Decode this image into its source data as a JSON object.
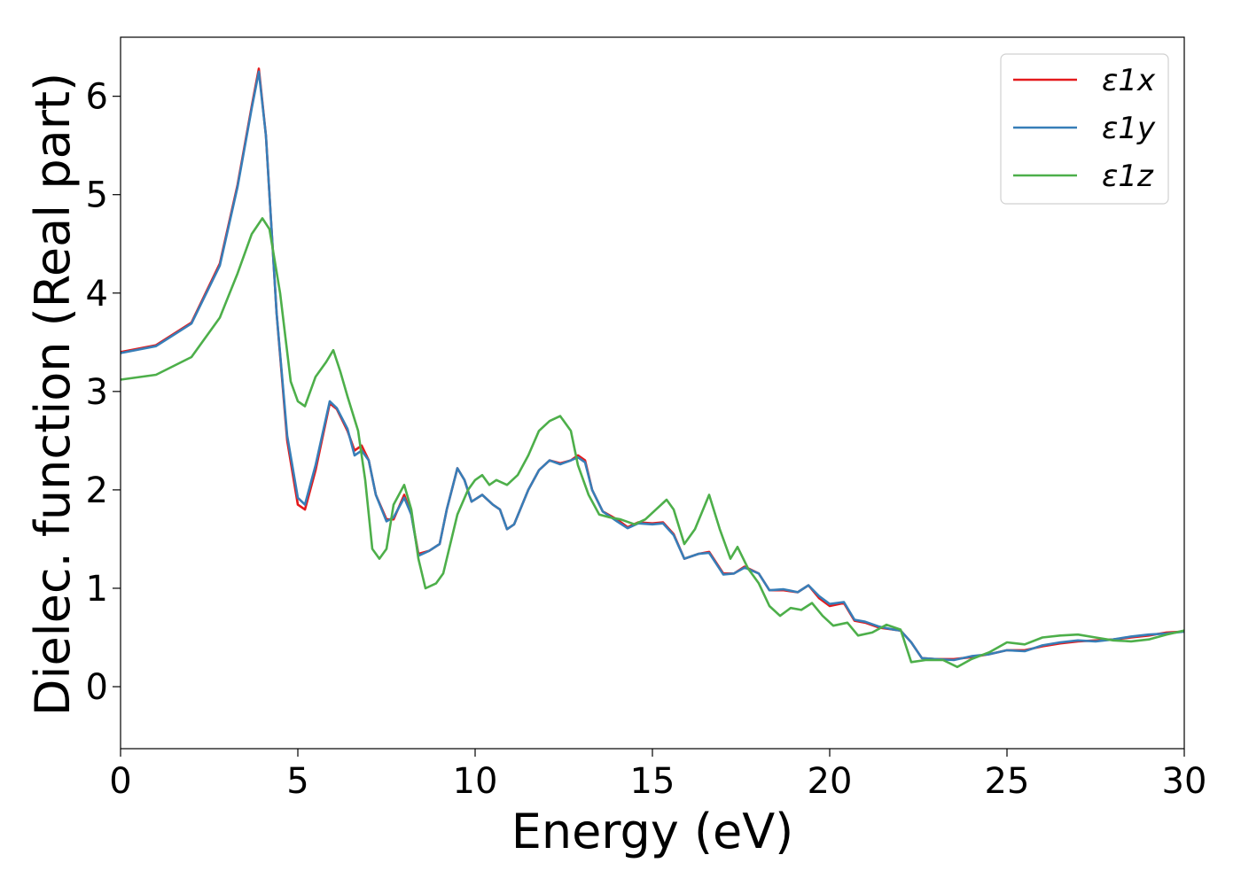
{
  "chart_data": {
    "type": "line",
    "xlabel": "Energy (eV)",
    "ylabel": "Dielec. function (Real part)",
    "xlim": [
      0,
      30
    ],
    "ylim": [
      -0.63,
      6.6
    ],
    "xticks": [
      0,
      5,
      10,
      15,
      20,
      25,
      30
    ],
    "yticks": [
      0,
      1,
      2,
      3,
      4,
      5,
      6
    ],
    "grid": false,
    "legend_position": "top-right",
    "series": [
      {
        "name": "ε1x",
        "color": "#e41a1c",
        "points": [
          [
            0,
            3.4
          ],
          [
            1,
            3.47
          ],
          [
            2,
            3.7
          ],
          [
            2.8,
            4.3
          ],
          [
            3.3,
            5.1
          ],
          [
            3.7,
            5.9
          ],
          [
            3.9,
            6.28
          ],
          [
            4.1,
            5.6
          ],
          [
            4.4,
            3.8
          ],
          [
            4.7,
            2.5
          ],
          [
            5.0,
            1.85
          ],
          [
            5.2,
            1.8
          ],
          [
            5.5,
            2.2
          ],
          [
            5.9,
            2.88
          ],
          [
            6.1,
            2.82
          ],
          [
            6.4,
            2.6
          ],
          [
            6.6,
            2.4
          ],
          [
            6.8,
            2.45
          ],
          [
            7.0,
            2.3
          ],
          [
            7.2,
            1.95
          ],
          [
            7.5,
            1.7
          ],
          [
            7.7,
            1.7
          ],
          [
            8.0,
            1.95
          ],
          [
            8.2,
            1.75
          ],
          [
            8.4,
            1.35
          ],
          [
            8.7,
            1.38
          ],
          [
            9.0,
            1.45
          ],
          [
            9.2,
            1.8
          ],
          [
            9.5,
            2.22
          ],
          [
            9.7,
            2.1
          ],
          [
            9.9,
            1.88
          ],
          [
            10.2,
            1.95
          ],
          [
            10.5,
            1.85
          ],
          [
            10.7,
            1.8
          ],
          [
            10.9,
            1.6
          ],
          [
            11.1,
            1.65
          ],
          [
            11.5,
            2.0
          ],
          [
            11.8,
            2.2
          ],
          [
            12.1,
            2.3
          ],
          [
            12.4,
            2.27
          ],
          [
            12.7,
            2.3
          ],
          [
            12.9,
            2.35
          ],
          [
            13.1,
            2.3
          ],
          [
            13.3,
            2.0
          ],
          [
            13.6,
            1.78
          ],
          [
            14.0,
            1.7
          ],
          [
            14.3,
            1.62
          ],
          [
            14.6,
            1.67
          ],
          [
            15.0,
            1.66
          ],
          [
            15.3,
            1.67
          ],
          [
            15.6,
            1.55
          ],
          [
            15.9,
            1.3
          ],
          [
            16.3,
            1.35
          ],
          [
            16.6,
            1.37
          ],
          [
            17.0,
            1.15
          ],
          [
            17.3,
            1.15
          ],
          [
            17.6,
            1.22
          ],
          [
            18.0,
            1.15
          ],
          [
            18.3,
            0.98
          ],
          [
            18.7,
            0.98
          ],
          [
            19.1,
            0.96
          ],
          [
            19.4,
            1.03
          ],
          [
            19.7,
            0.9
          ],
          [
            20.0,
            0.82
          ],
          [
            20.4,
            0.85
          ],
          [
            20.7,
            0.67
          ],
          [
            21.0,
            0.65
          ],
          [
            21.4,
            0.6
          ],
          [
            21.8,
            0.58
          ],
          [
            22.0,
            0.57
          ],
          [
            22.3,
            0.45
          ],
          [
            22.6,
            0.29
          ],
          [
            23.0,
            0.28
          ],
          [
            23.5,
            0.28
          ],
          [
            24.0,
            0.3
          ],
          [
            24.5,
            0.33
          ],
          [
            25.0,
            0.37
          ],
          [
            25.5,
            0.37
          ],
          [
            26.0,
            0.41
          ],
          [
            26.5,
            0.44
          ],
          [
            27.0,
            0.46
          ],
          [
            27.5,
            0.47
          ],
          [
            28.0,
            0.48
          ],
          [
            28.5,
            0.5
          ],
          [
            29.0,
            0.52
          ],
          [
            29.5,
            0.55
          ],
          [
            30,
            0.56
          ]
        ]
      },
      {
        "name": "ε1y",
        "color": "#377eb8",
        "points": [
          [
            0,
            3.39
          ],
          [
            1,
            3.46
          ],
          [
            2,
            3.69
          ],
          [
            2.8,
            4.28
          ],
          [
            3.3,
            5.08
          ],
          [
            3.7,
            5.88
          ],
          [
            3.9,
            6.25
          ],
          [
            4.1,
            5.6
          ],
          [
            4.4,
            3.8
          ],
          [
            4.7,
            2.55
          ],
          [
            5.0,
            1.92
          ],
          [
            5.2,
            1.85
          ],
          [
            5.5,
            2.25
          ],
          [
            5.9,
            2.9
          ],
          [
            6.1,
            2.83
          ],
          [
            6.4,
            2.62
          ],
          [
            6.6,
            2.35
          ],
          [
            6.8,
            2.4
          ],
          [
            7.0,
            2.3
          ],
          [
            7.2,
            1.95
          ],
          [
            7.5,
            1.68
          ],
          [
            7.7,
            1.72
          ],
          [
            8.0,
            1.92
          ],
          [
            8.2,
            1.75
          ],
          [
            8.4,
            1.33
          ],
          [
            8.7,
            1.38
          ],
          [
            9.0,
            1.45
          ],
          [
            9.2,
            1.8
          ],
          [
            9.5,
            2.22
          ],
          [
            9.7,
            2.1
          ],
          [
            9.9,
            1.88
          ],
          [
            10.2,
            1.95
          ],
          [
            10.5,
            1.85
          ],
          [
            10.7,
            1.8
          ],
          [
            10.9,
            1.6
          ],
          [
            11.1,
            1.65
          ],
          [
            11.5,
            2.0
          ],
          [
            11.8,
            2.2
          ],
          [
            12.1,
            2.3
          ],
          [
            12.4,
            2.26
          ],
          [
            12.7,
            2.3
          ],
          [
            12.9,
            2.33
          ],
          [
            13.1,
            2.28
          ],
          [
            13.3,
            2.0
          ],
          [
            13.6,
            1.78
          ],
          [
            14.0,
            1.68
          ],
          [
            14.3,
            1.61
          ],
          [
            14.6,
            1.66
          ],
          [
            15.0,
            1.65
          ],
          [
            15.3,
            1.66
          ],
          [
            15.6,
            1.54
          ],
          [
            15.9,
            1.3
          ],
          [
            16.3,
            1.35
          ],
          [
            16.6,
            1.36
          ],
          [
            17.0,
            1.14
          ],
          [
            17.3,
            1.15
          ],
          [
            17.6,
            1.21
          ],
          [
            18.0,
            1.15
          ],
          [
            18.3,
            0.98
          ],
          [
            18.7,
            0.99
          ],
          [
            19.1,
            0.96
          ],
          [
            19.4,
            1.03
          ],
          [
            19.7,
            0.92
          ],
          [
            20.0,
            0.84
          ],
          [
            20.4,
            0.86
          ],
          [
            20.7,
            0.68
          ],
          [
            21.0,
            0.66
          ],
          [
            21.4,
            0.61
          ],
          [
            21.8,
            0.58
          ],
          [
            22.0,
            0.57
          ],
          [
            22.3,
            0.45
          ],
          [
            22.6,
            0.29
          ],
          [
            23.0,
            0.28
          ],
          [
            23.5,
            0.27
          ],
          [
            24.0,
            0.31
          ],
          [
            24.5,
            0.33
          ],
          [
            25.0,
            0.37
          ],
          [
            25.5,
            0.36
          ],
          [
            26.0,
            0.42
          ],
          [
            26.5,
            0.45
          ],
          [
            27.0,
            0.47
          ],
          [
            27.5,
            0.46
          ],
          [
            28.0,
            0.48
          ],
          [
            28.5,
            0.51
          ],
          [
            29.0,
            0.53
          ],
          [
            29.5,
            0.54
          ],
          [
            30,
            0.56
          ]
        ]
      },
      {
        "name": "ε1z",
        "color": "#4daf4a",
        "points": [
          [
            0,
            3.12
          ],
          [
            1,
            3.17
          ],
          [
            2,
            3.35
          ],
          [
            2.8,
            3.75
          ],
          [
            3.3,
            4.2
          ],
          [
            3.7,
            4.6
          ],
          [
            4.0,
            4.76
          ],
          [
            4.2,
            4.65
          ],
          [
            4.5,
            4.0
          ],
          [
            4.8,
            3.1
          ],
          [
            5.0,
            2.9
          ],
          [
            5.2,
            2.85
          ],
          [
            5.5,
            3.15
          ],
          [
            5.8,
            3.3
          ],
          [
            6.0,
            3.42
          ],
          [
            6.2,
            3.2
          ],
          [
            6.4,
            2.95
          ],
          [
            6.7,
            2.6
          ],
          [
            6.9,
            2.1
          ],
          [
            7.1,
            1.4
          ],
          [
            7.3,
            1.3
          ],
          [
            7.5,
            1.4
          ],
          [
            7.7,
            1.85
          ],
          [
            8.0,
            2.05
          ],
          [
            8.2,
            1.8
          ],
          [
            8.4,
            1.3
          ],
          [
            8.6,
            1.0
          ],
          [
            8.9,
            1.05
          ],
          [
            9.1,
            1.15
          ],
          [
            9.5,
            1.75
          ],
          [
            9.8,
            2.0
          ],
          [
            10.0,
            2.1
          ],
          [
            10.2,
            2.15
          ],
          [
            10.4,
            2.05
          ],
          [
            10.6,
            2.1
          ],
          [
            10.9,
            2.05
          ],
          [
            11.2,
            2.15
          ],
          [
            11.5,
            2.35
          ],
          [
            11.8,
            2.6
          ],
          [
            12.1,
            2.7
          ],
          [
            12.4,
            2.75
          ],
          [
            12.7,
            2.6
          ],
          [
            12.9,
            2.25
          ],
          [
            13.2,
            1.95
          ],
          [
            13.5,
            1.75
          ],
          [
            13.8,
            1.72
          ],
          [
            14.1,
            1.7
          ],
          [
            14.5,
            1.65
          ],
          [
            14.8,
            1.7
          ],
          [
            15.1,
            1.8
          ],
          [
            15.4,
            1.9
          ],
          [
            15.6,
            1.8
          ],
          [
            15.9,
            1.45
          ],
          [
            16.2,
            1.6
          ],
          [
            16.6,
            1.95
          ],
          [
            16.9,
            1.6
          ],
          [
            17.2,
            1.3
          ],
          [
            17.4,
            1.42
          ],
          [
            17.7,
            1.2
          ],
          [
            18.0,
            1.05
          ],
          [
            18.3,
            0.82
          ],
          [
            18.6,
            0.72
          ],
          [
            18.9,
            0.8
          ],
          [
            19.2,
            0.78
          ],
          [
            19.5,
            0.85
          ],
          [
            19.8,
            0.72
          ],
          [
            20.1,
            0.62
          ],
          [
            20.5,
            0.65
          ],
          [
            20.8,
            0.52
          ],
          [
            21.2,
            0.55
          ],
          [
            21.6,
            0.63
          ],
          [
            22.0,
            0.58
          ],
          [
            22.3,
            0.25
          ],
          [
            22.7,
            0.27
          ],
          [
            23.2,
            0.27
          ],
          [
            23.6,
            0.2
          ],
          [
            24.0,
            0.28
          ],
          [
            24.5,
            0.35
          ],
          [
            25.0,
            0.45
          ],
          [
            25.5,
            0.43
          ],
          [
            26.0,
            0.5
          ],
          [
            26.5,
            0.52
          ],
          [
            27.0,
            0.53
          ],
          [
            27.5,
            0.5
          ],
          [
            28.0,
            0.47
          ],
          [
            28.5,
            0.46
          ],
          [
            29.0,
            0.48
          ],
          [
            29.5,
            0.53
          ],
          [
            30,
            0.57
          ]
        ]
      }
    ]
  }
}
